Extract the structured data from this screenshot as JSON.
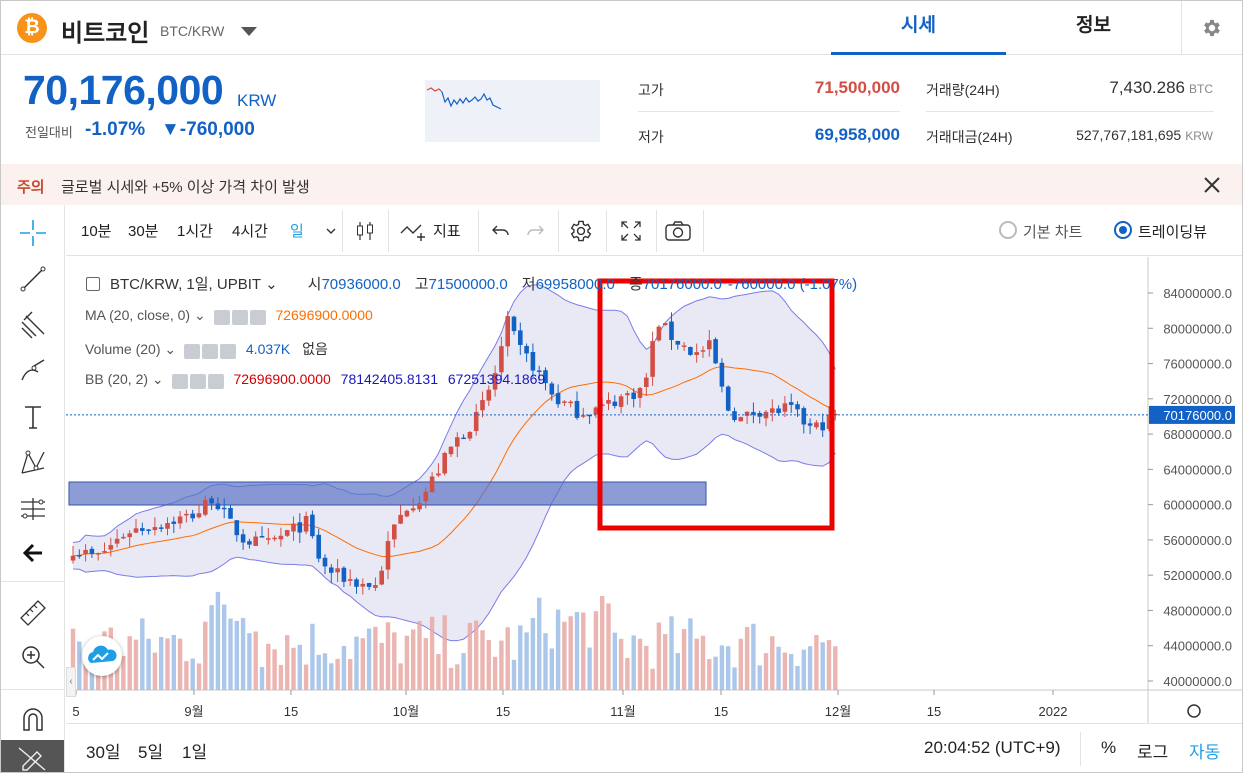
{
  "header": {
    "coin_name": "비트코인",
    "coin_symbol": "BTC/KRW",
    "coin_logo_glyph": "₿",
    "tabs": [
      {
        "label": "시세",
        "active": true
      },
      {
        "label": "정보",
        "active": false
      }
    ]
  },
  "ticker": {
    "price": "70,176,000",
    "price_unit": "KRW",
    "change_label": "전일대비",
    "change_pct": "-1.07%",
    "change_amt": "▼-760,000",
    "high_label": "고가",
    "high_value": "71,500,000",
    "low_label": "저가",
    "low_value": "69,958,000",
    "volume_label": "거래량(24H)",
    "volume_value": "7,430.286",
    "volume_unit": "BTC",
    "amount_label": "거래대금(24H)",
    "amount_value": "527,767,181,695",
    "amount_unit": "KRW"
  },
  "notice": {
    "tag": "주의",
    "text": "글로벌 시세와 +5% 이상 가격 차이 발생"
  },
  "toolbar": {
    "intervals": [
      "10분",
      "30분",
      "1시간",
      "4시간",
      "일"
    ],
    "active_interval": "일",
    "indicator_label": "지표",
    "chart_types": [
      {
        "label": "기본 차트",
        "selected": false
      },
      {
        "label": "트레이딩뷰",
        "selected": true
      }
    ]
  },
  "legend": {
    "title": "BTC/KRW, 1일, UPBIT",
    "open_prefix": "시",
    "open": "70936000.0",
    "high_prefix": "고",
    "high": "71500000.0",
    "low_prefix": "저",
    "low": "69958000.0",
    "close_prefix": "종",
    "close": "70176000.0",
    "change": "-760000.0 (-1.07%)",
    "ma_label": "MA (20, close, 0)",
    "ma_value": "72696900.0000",
    "volume_label": "Volume (20)",
    "volume_value": "4.037K",
    "volume_extra": "없음",
    "bb_label": "BB (20, 2)",
    "bb_basis": "72696900.0000",
    "bb_upper": "78142405.8131",
    "bb_lower": "67251394.1869"
  },
  "chart_data": {
    "type": "candlestick",
    "price_axis": [
      "84000000.0",
      "80000000.0",
      "76000000.0",
      "72000000.0",
      "68000000.0",
      "64000000.0",
      "60000000.0",
      "56000000.0",
      "52000000.0",
      "48000000.0",
      "44000000.0",
      "40000000.0"
    ],
    "last_price_label": "70176000.0",
    "time_axis": [
      "5",
      "9월",
      "15",
      "10월",
      "15",
      "11월",
      "15",
      "12월",
      "15",
      "2022"
    ],
    "colors": {
      "up": "#d24f45",
      "down": "#1261c4",
      "ma": "#ff6d00",
      "bb_fill": "#e1e1f3",
      "bb_line": "#7b7be8",
      "highlight": "#ee0000"
    }
  },
  "bottom_bar": {
    "ranges": [
      "30일",
      "5일",
      "1일"
    ],
    "clock": "20:04:52 (UTC+9)",
    "pct_label": "%",
    "log_label": "로그",
    "auto_label": "자동"
  }
}
